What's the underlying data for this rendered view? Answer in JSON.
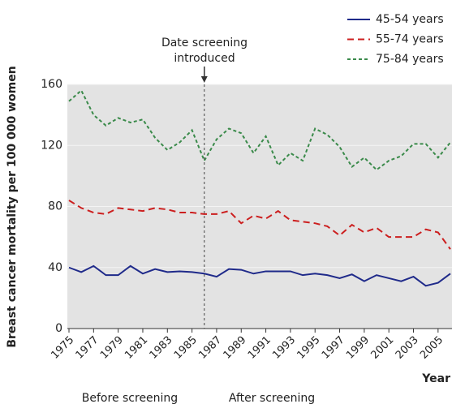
{
  "chart_data": {
    "type": "line",
    "ylabel": "Breast cancer mortality per 100 000 women",
    "xlabel": "Year",
    "x": [
      1975,
      1976,
      1977,
      1978,
      1979,
      1980,
      1981,
      1982,
      1983,
      1984,
      1985,
      1986,
      1987,
      1988,
      1989,
      1990,
      1991,
      1992,
      1993,
      1994,
      1995,
      1996,
      1997,
      1998,
      1999,
      2000,
      2001,
      2002,
      2003,
      2004,
      2005,
      2006
    ],
    "series": [
      {
        "name": "45-54 years",
        "color": "#1f2a8a",
        "dash": "solid",
        "values": [
          40,
          37,
          41,
          35,
          35,
          41,
          36,
          39,
          37,
          37.5,
          37,
          36,
          34,
          39,
          38.5,
          36,
          37.5,
          37.5,
          37.5,
          35,
          36,
          35,
          33,
          35.5,
          31,
          35,
          33,
          31,
          34,
          28,
          30,
          36
        ]
      },
      {
        "name": "55-74 years",
        "color": "#cc1f1f",
        "dash": "dashed",
        "values": [
          84,
          79,
          76,
          75,
          79,
          78,
          77,
          79,
          78,
          76,
          76,
          75,
          75,
          77,
          69,
          74,
          72,
          77,
          71,
          70,
          69,
          67,
          61,
          68,
          63,
          66,
          60,
          60,
          60,
          65,
          63,
          52
        ]
      },
      {
        "name": "75-84 years",
        "color": "#3a8a4a",
        "dash": "dotted",
        "values": [
          149,
          156,
          140,
          133,
          138,
          135,
          137,
          125,
          117,
          122,
          130,
          110,
          124,
          131,
          128,
          115,
          126,
          107,
          115,
          110,
          131,
          127,
          119,
          106,
          112,
          104,
          110,
          113,
          121,
          121,
          112,
          122
        ]
      }
    ],
    "xlim": [
      1975,
      2006
    ],
    "xticks": [
      1975,
      1977,
      1979,
      1981,
      1983,
      1985,
      1987,
      1989,
      1991,
      1993,
      1995,
      1997,
      1999,
      2001,
      2003,
      2005
    ],
    "ylim": [
      0,
      160
    ],
    "yticks": [
      0,
      40,
      80,
      120,
      160
    ],
    "grid": true,
    "legend": "top-right",
    "annotation": {
      "lines": [
        "Date screening",
        "introduced"
      ],
      "x": 1986
    },
    "regions": [
      "Before screening",
      "After screening"
    ]
  }
}
